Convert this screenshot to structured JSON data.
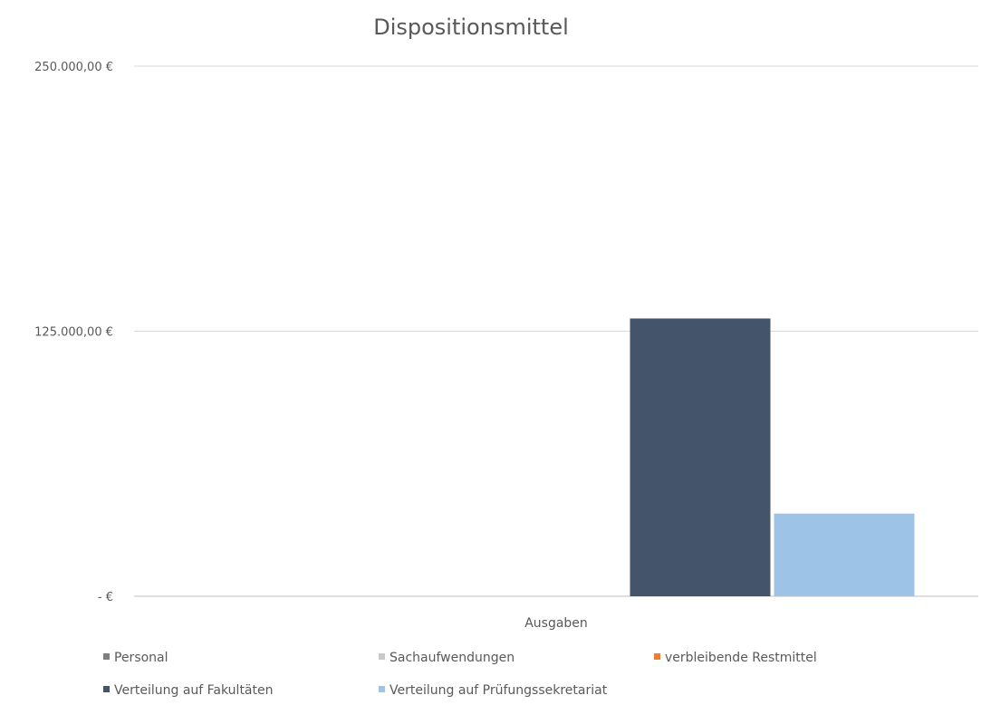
{
  "chart_data": {
    "type": "bar",
    "title": "Dispositionsmittel",
    "xlabel": "",
    "ylabel": "",
    "categories": [
      "Ausgaben"
    ],
    "ylim": [
      0,
      250000
    ],
    "yticks": [
      {
        "value": 0,
        "label": "-   €"
      },
      {
        "value": 125000,
        "label": "125.000,00 €"
      },
      {
        "value": 250000,
        "label": "250.000,00 €"
      }
    ],
    "grid": true,
    "legend_position": "bottom",
    "series": [
      {
        "name": "Personal",
        "color": "#7f7f7f",
        "values": [
          0
        ]
      },
      {
        "name": "Sachaufwendungen",
        "color": "#c9c9c9",
        "values": [
          0
        ]
      },
      {
        "name": "verbleibende Restmittel",
        "color": "#ed7d31",
        "values": [
          0
        ]
      },
      {
        "name": "Verteilung auf Fakultäten",
        "color": "#44546a",
        "values": [
          131000
        ]
      },
      {
        "name": "Verteilung auf Prüfungssekretariat",
        "color": "#9dc3e6",
        "values": [
          39000
        ]
      }
    ]
  }
}
